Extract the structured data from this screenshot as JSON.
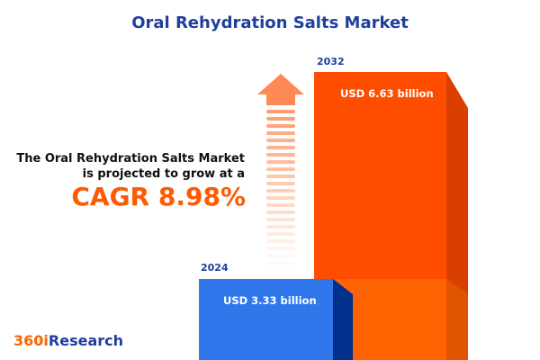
{
  "title": "Oral Rehydration Salts Market",
  "description": "The Oral Rehydration Salts Market is projected to grow at a",
  "cagr": "CAGR 8.98%",
  "logo": {
    "part1": "360i",
    "part2": "Research"
  },
  "colors": {
    "title": "#1f3f9e",
    "accent": "#ff5a00",
    "bar_2024": "#3077ec",
    "bar_2032": "#ff4d00",
    "arrow": "#ff8a55"
  },
  "chart_data": {
    "type": "bar",
    "categories": [
      "2024",
      "2032"
    ],
    "values": [
      3.33,
      6.63
    ],
    "value_labels": [
      "USD 3.33 billion",
      "USD 6.63 billion"
    ],
    "title": "Oral Rehydration Salts Market",
    "xlabel": "",
    "ylabel": ""
  }
}
